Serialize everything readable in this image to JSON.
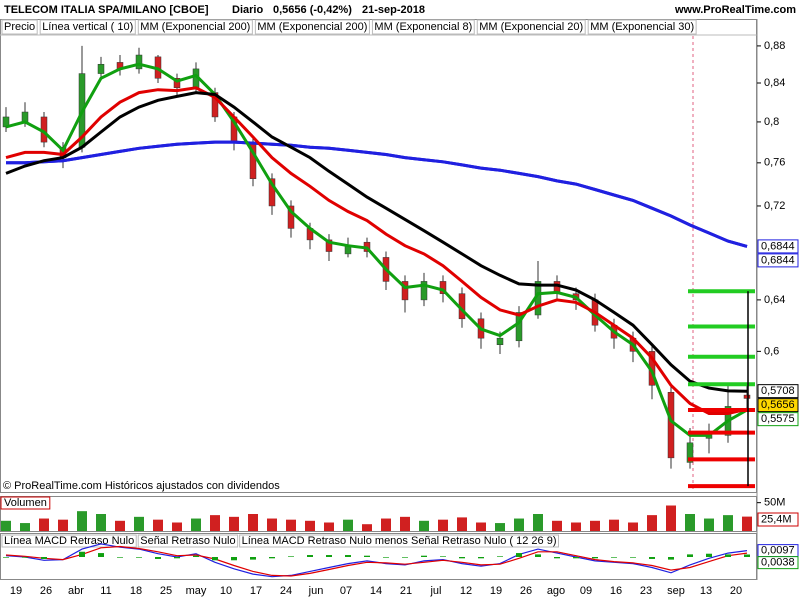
{
  "header": {
    "title": "TELECOM ITALIA SPA/MILANO [CBOE]",
    "period": "Diario",
    "quote": "0,5656 (-0,42%)",
    "date": "21-sep-2018",
    "site": "www.ProRealTime.com"
  },
  "chart_data": [
    {
      "type": "candlestick",
      "log_scale": true,
      "note": "© ProRealTime.com Históricos ajustados con dividendos",
      "legend": [
        {
          "label": "Precio",
          "color": "#000000"
        },
        {
          "label": "Línea vertical ( 10)",
          "color": "#e06080"
        },
        {
          "label": "MM (Exponencial 200)",
          "color": "#2020e0"
        },
        {
          "label": "MM (Exponencial 200)",
          "color": "#2020e0"
        },
        {
          "label": "MM (Exponencial 8)",
          "color": "#10a010"
        },
        {
          "label": "MM (Exponencial 20)",
          "color": "#e00000"
        },
        {
          "label": "MM (Exponencial 30)",
          "color": "#000000"
        }
      ],
      "x_tick_labels": [
        "19",
        "26",
        "abr",
        "11",
        "18",
        "25",
        "may",
        "10",
        "17",
        "24",
        "jun",
        "07",
        "14",
        "21",
        "jul",
        "12",
        "19",
        "26",
        "ago",
        "09",
        "16",
        "23",
        "sep",
        "13",
        "20"
      ],
      "ylim": [
        0.503,
        0.891
      ],
      "yticks": [
        {
          "value": 0.88,
          "label": "0,88"
        },
        {
          "value": 0.84,
          "label": "0,84"
        },
        {
          "value": 0.8,
          "label": "0,8"
        },
        {
          "value": 0.76,
          "label": "0,76"
        },
        {
          "value": 0.72,
          "label": "0,72"
        },
        {
          "value": 0.64,
          "label": "0,64"
        },
        {
          "value": 0.6,
          "label": "0,6"
        }
      ],
      "up_color": "#2a9a2a",
      "down_color": "#d02020",
      "open": [
        0.795,
        0.8,
        0.805,
        0.775,
        0.775,
        0.85,
        0.862,
        0.855,
        0.868,
        0.845,
        0.835,
        0.83,
        0.805,
        0.78,
        0.745,
        0.72,
        0.7,
        0.69,
        0.678,
        0.688,
        0.675,
        0.655,
        0.64,
        0.655,
        0.645,
        0.625,
        0.605,
        0.608,
        0.628,
        0.655,
        0.645,
        0.64,
        0.62,
        0.61,
        0.6,
        0.57,
        0.522,
        0.538,
        0.54,
        0.568
      ],
      "high": [
        0.815,
        0.82,
        0.81,
        0.78,
        0.88,
        0.868,
        0.87,
        0.878,
        0.87,
        0.85,
        0.862,
        0.835,
        0.81,
        0.785,
        0.75,
        0.725,
        0.705,
        0.695,
        0.692,
        0.692,
        0.68,
        0.66,
        0.662,
        0.66,
        0.65,
        0.63,
        0.615,
        0.635,
        0.672,
        0.66,
        0.65,
        0.645,
        0.625,
        0.615,
        0.605,
        0.575,
        0.545,
        0.548,
        0.575,
        0.575
      ],
      "low": [
        0.79,
        0.795,
        0.775,
        0.755,
        0.77,
        0.845,
        0.848,
        0.85,
        0.84,
        0.825,
        0.83,
        0.8,
        0.772,
        0.738,
        0.712,
        0.692,
        0.682,
        0.672,
        0.675,
        0.675,
        0.648,
        0.63,
        0.635,
        0.638,
        0.618,
        0.602,
        0.598,
        0.603,
        0.625,
        0.64,
        0.632,
        0.615,
        0.602,
        0.592,
        0.565,
        0.518,
        0.518,
        0.528,
        0.535,
        0.558
      ],
      "close": [
        0.805,
        0.81,
        0.78,
        0.765,
        0.85,
        0.86,
        0.855,
        0.87,
        0.845,
        0.835,
        0.855,
        0.805,
        0.78,
        0.745,
        0.72,
        0.7,
        0.69,
        0.68,
        0.685,
        0.68,
        0.655,
        0.64,
        0.655,
        0.645,
        0.625,
        0.61,
        0.61,
        0.63,
        0.655,
        0.645,
        0.64,
        0.62,
        0.61,
        0.6,
        0.575,
        0.525,
        0.535,
        0.54,
        0.56,
        0.5656
      ],
      "close_label": "0,5656",
      "close_label_color": "#ffd700",
      "series": [
        {
          "color": "#2020e0",
          "last_label": "0,6844",
          "values": [
            0.76,
            0.76,
            0.761,
            0.762,
            0.765,
            0.768,
            0.771,
            0.774,
            0.776,
            0.778,
            0.779,
            0.78,
            0.78,
            0.779,
            0.778,
            0.777,
            0.775,
            0.774,
            0.772,
            0.77,
            0.768,
            0.765,
            0.763,
            0.761,
            0.758,
            0.755,
            0.753,
            0.75,
            0.747,
            0.743,
            0.74,
            0.735,
            0.73,
            0.725,
            0.718,
            0.711,
            0.703,
            0.696,
            0.689,
            0.6844
          ]
        },
        {
          "color": "#2020e0",
          "last_label": "0,6844",
          "values": [
            0.76,
            0.76,
            0.761,
            0.762,
            0.765,
            0.768,
            0.771,
            0.774,
            0.776,
            0.778,
            0.779,
            0.78,
            0.78,
            0.779,
            0.778,
            0.777,
            0.775,
            0.774,
            0.772,
            0.77,
            0.768,
            0.765,
            0.763,
            0.761,
            0.758,
            0.755,
            0.753,
            0.75,
            0.747,
            0.743,
            0.74,
            0.735,
            0.73,
            0.725,
            0.718,
            0.711,
            0.703,
            0.696,
            0.689,
            0.6844
          ]
        },
        {
          "color": "#10a010",
          "last_label": "0,5575",
          "values": [
            0.795,
            0.8,
            0.79,
            0.772,
            0.81,
            0.845,
            0.855,
            0.86,
            0.855,
            0.842,
            0.848,
            0.828,
            0.8,
            0.77,
            0.74,
            0.715,
            0.7,
            0.688,
            0.685,
            0.683,
            0.665,
            0.65,
            0.652,
            0.648,
            0.632,
            0.617,
            0.612,
            0.622,
            0.645,
            0.646,
            0.642,
            0.628,
            0.615,
            0.605,
            0.585,
            0.55,
            0.54,
            0.54,
            0.55,
            0.5575
          ]
        },
        {
          "color": "#e00000",
          "values": [
            0.765,
            0.77,
            0.77,
            0.768,
            0.785,
            0.805,
            0.82,
            0.83,
            0.833,
            0.832,
            0.835,
            0.825,
            0.805,
            0.785,
            0.765,
            0.75,
            0.738,
            0.725,
            0.715,
            0.707,
            0.695,
            0.685,
            0.678,
            0.668,
            0.655,
            0.642,
            0.632,
            0.628,
            0.635,
            0.64,
            0.638,
            0.63,
            0.62,
            0.61,
            0.595,
            0.575,
            0.562,
            0.555,
            0.555,
            0.558
          ]
        },
        {
          "color": "#000000",
          "last_label": "0,5708",
          "values": [
            0.75,
            0.757,
            0.762,
            0.765,
            0.775,
            0.79,
            0.805,
            0.815,
            0.822,
            0.826,
            0.83,
            0.828,
            0.815,
            0.8,
            0.785,
            0.775,
            0.765,
            0.752,
            0.74,
            0.728,
            0.718,
            0.708,
            0.698,
            0.688,
            0.678,
            0.668,
            0.66,
            0.653,
            0.652,
            0.652,
            0.648,
            0.64,
            0.63,
            0.62,
            0.605,
            0.59,
            0.578,
            0.573,
            0.571,
            0.5708
          ]
        }
      ],
      "levels": [
        {
          "color": "#22cc22",
          "values": [
            0.647,
            0.619,
            0.596,
            0.5758
          ]
        },
        {
          "color": "#ee0000",
          "values": [
            0.5575,
            0.5419,
            0.524,
            0.5067
          ]
        }
      ]
    },
    {
      "type": "bar",
      "title": "Volumen",
      "ylim": [
        0,
        60
      ],
      "yticks": [
        {
          "value": 50,
          "label": "50M"
        }
      ],
      "last_label": "25,4M",
      "values": [
        18,
        14,
        22,
        20,
        35,
        30,
        18,
        25,
        20,
        15,
        22,
        28,
        25,
        30,
        22,
        20,
        18,
        15,
        20,
        12,
        22,
        25,
        18,
        20,
        24,
        15,
        14,
        22,
        30,
        18,
        15,
        18,
        20,
        15,
        28,
        45,
        30,
        22,
        28,
        25.4
      ]
    },
    {
      "type": "line",
      "ylim": [
        -0.032,
        0.032
      ],
      "series": [
        {
          "name": "Línea MACD Retraso Nulo",
          "color": "#2020e0",
          "last_label": "0,0097",
          "values": [
            0.002,
            0.0,
            -0.005,
            -0.004,
            0.012,
            0.02,
            0.015,
            0.012,
            0.005,
            0.0,
            0.005,
            -0.008,
            -0.018,
            -0.026,
            -0.03,
            -0.028,
            -0.022,
            -0.016,
            -0.01,
            -0.006,
            -0.01,
            -0.012,
            -0.006,
            -0.004,
            -0.01,
            -0.014,
            -0.01,
            0.004,
            0.012,
            0.006,
            0.0,
            -0.006,
            -0.008,
            -0.01,
            -0.016,
            -0.024,
            -0.012,
            -0.002,
            0.006,
            0.0097
          ]
        },
        {
          "name": "Señal Retraso Nulo",
          "color": "#e00000",
          "values": [
            0.003,
            0.001,
            -0.002,
            -0.004,
            0.004,
            0.014,
            0.016,
            0.013,
            0.008,
            0.002,
            0.003,
            -0.003,
            -0.013,
            -0.022,
            -0.028,
            -0.029,
            -0.025,
            -0.019,
            -0.013,
            -0.008,
            -0.009,
            -0.011,
            -0.008,
            -0.005,
            -0.008,
            -0.012,
            -0.011,
            -0.002,
            0.008,
            0.008,
            0.002,
            -0.004,
            -0.007,
            -0.009,
            -0.013,
            -0.02,
            -0.016,
            -0.007,
            0.002,
            0.0059
          ]
        },
        {
          "name": "Línea MACD Retraso Nulo menos Señal Retraso Nulo ( 12 26 9)",
          "color": "#10a010",
          "kind": "histogram",
          "last_label": "0,0038",
          "values": [
            -0.001,
            -0.001,
            -0.003,
            0,
            0.008,
            0.006,
            -0.001,
            -0.001,
            -0.003,
            -0.002,
            0.002,
            -0.005,
            -0.005,
            -0.004,
            -0.002,
            0.001,
            0.003,
            0.003,
            0.003,
            0.002,
            -0.001,
            -0.001,
            0.002,
            0.001,
            -0.002,
            -0.002,
            0.001,
            0.006,
            0.004,
            -0.002,
            -0.002,
            -0.002,
            -0.001,
            -0.001,
            -0.003,
            -0.004,
            0.004,
            0.005,
            0.004,
            0.0038
          ]
        }
      ]
    }
  ]
}
